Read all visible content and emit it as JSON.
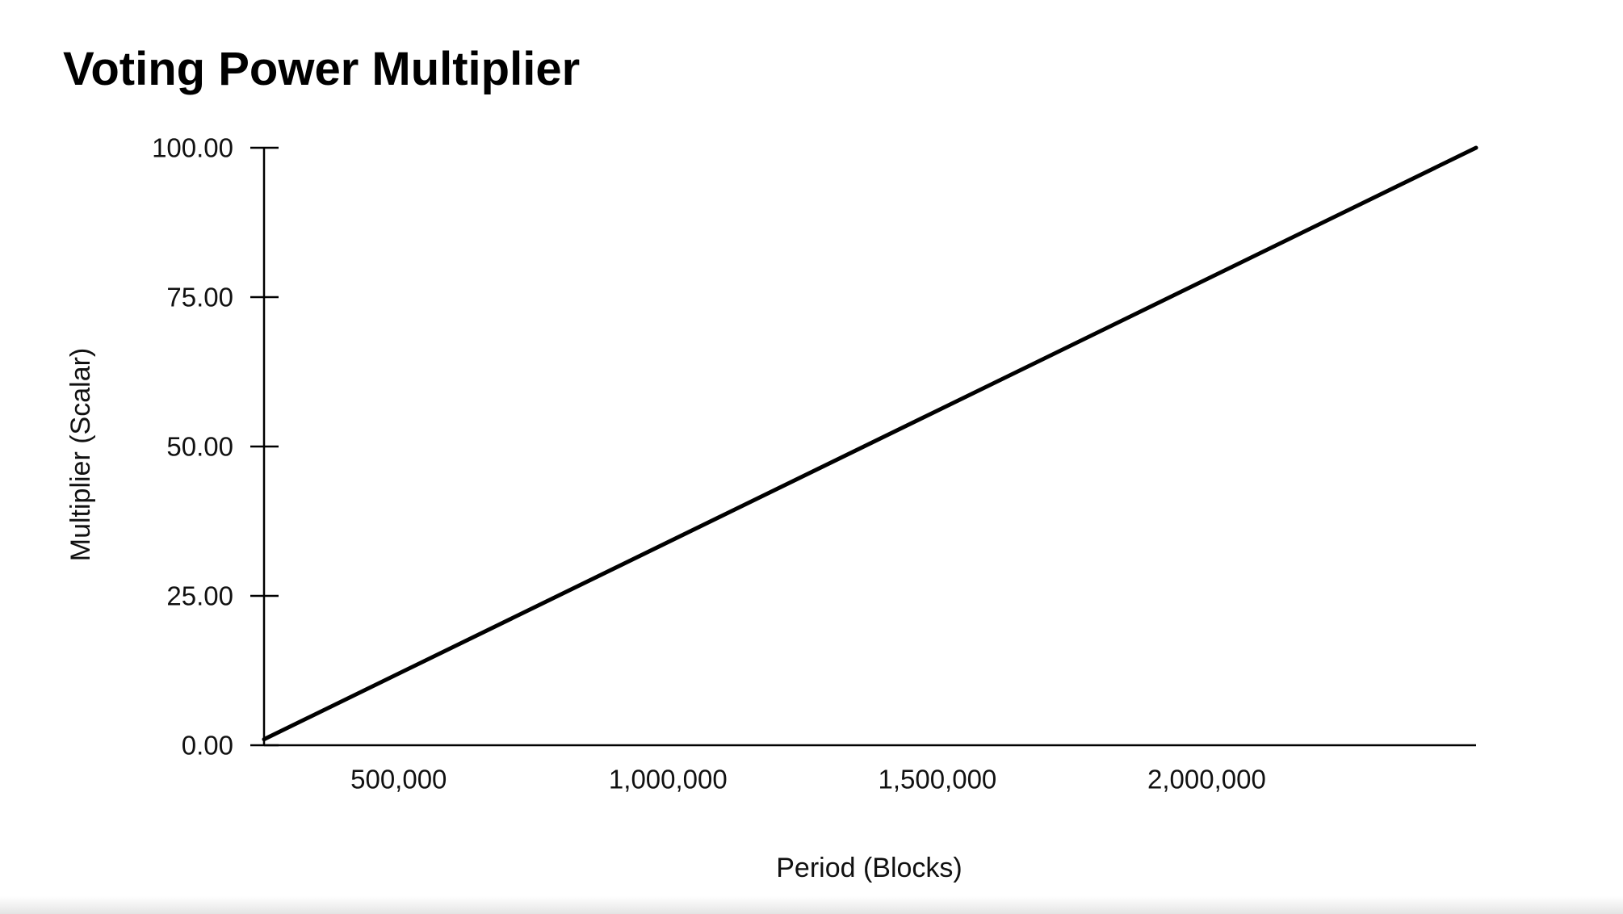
{
  "chart_data": {
    "type": "line",
    "title": "Voting Power Multiplier",
    "xlabel": "Period (Blocks)",
    "ylabel": "Multiplier (Scalar)",
    "xlim": [
      250000,
      2500000
    ],
    "ylim": [
      0,
      100
    ],
    "x_ticks": [
      500000,
      1000000,
      1500000,
      2000000
    ],
    "x_tick_labels": [
      "500,000",
      "1,000,000",
      "1,500,000",
      "2,000,000"
    ],
    "y_ticks": [
      0,
      25,
      50,
      75,
      100
    ],
    "y_tick_labels": [
      "0.00",
      "25.00",
      "50.00",
      "75.00",
      "100.00"
    ],
    "grid": false,
    "legend": "none",
    "series": [
      {
        "x": [
          250000,
          2500000
        ],
        "y": [
          1,
          100
        ],
        "color": "#000000"
      }
    ]
  }
}
